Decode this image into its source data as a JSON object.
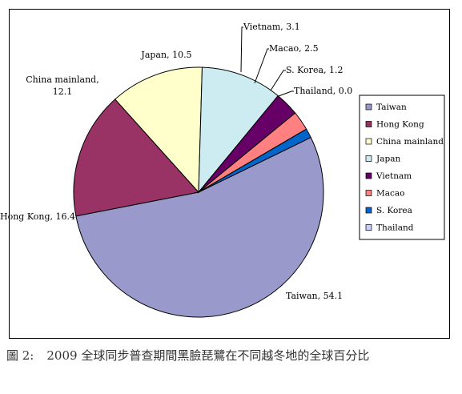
{
  "chart_data": {
    "type": "pie",
    "categories": [
      "Taiwan",
      "Hong Kong",
      "China mainland",
      "Japan",
      "Vietnam",
      "Macao",
      "S. Korea",
      "Thailand"
    ],
    "values": [
      54.1,
      16.4,
      12.1,
      10.5,
      3.1,
      2.5,
      1.2,
      0.0
    ],
    "slice_labels": [
      "Taiwan, 54.1",
      "Hong Kong, 16.4",
      "China mainland,",
      "Japan, 10.5",
      "Vietnam, 3.1",
      "Macao, 2.5",
      "S. Korea, 1.2",
      "Thailand, 0.0"
    ],
    "slice_labels_line2": [
      "",
      "",
      "12.1",
      "",
      "",
      "",
      "",
      ""
    ],
    "colors": [
      "#9999cc",
      "#993366",
      "#ffffcc",
      "#ccecf2",
      "#660066",
      "#ff8080",
      "#0066cc",
      "#ccccff"
    ],
    "legend_placement": "right"
  },
  "caption": {
    "number": "圖 2:",
    "text": "2009 全球同步普查期間黑臉琵鷺在不同越冬地的全球百分比"
  }
}
